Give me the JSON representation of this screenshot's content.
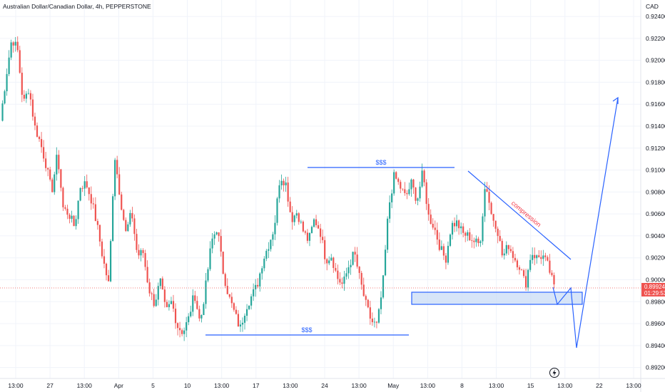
{
  "chart_data": {
    "type": "candlestick",
    "title": "Australian Dollar/Canadian Dollar, 4h, PEPPERSTONE",
    "currency": "CAD",
    "ylim": [
      0.891,
      0.9255
    ],
    "y_ticks": [
      "0.92400",
      "0.92200",
      "0.92000",
      "0.91800",
      "0.91600",
      "0.91400",
      "0.91200",
      "0.91000",
      "0.90800",
      "0.90600",
      "0.90400",
      "0.90200",
      "0.90000",
      "0.89800",
      "0.89600",
      "0.89400",
      "0.89200"
    ],
    "x_ticks": [
      "13:00",
      "27",
      "13:00",
      "Apr",
      "5",
      "10",
      "13:00",
      "17",
      "13:00",
      "24",
      "13:00",
      "May",
      "13:00",
      "8",
      "13:00",
      "15",
      "13:00",
      "22",
      "13:00"
    ],
    "last_price": "0.89924",
    "countdown": "01:29:53",
    "colors": {
      "up": "#26a69a",
      "down": "#ef5350",
      "drawing": "#2962ff",
      "note": "#f23645",
      "zone_fill": "#c9dcf5"
    },
    "annotations": {
      "liquidity_top": "$$$",
      "liquidity_bottom": "$$$",
      "trend_label": "compression"
    },
    "price_path": [
      0.9145,
      0.9185,
      0.922,
      0.921,
      0.916,
      0.9175,
      0.914,
      0.9125,
      0.9105,
      0.908,
      0.9115,
      0.9065,
      0.906,
      0.9048,
      0.9085,
      0.9088,
      0.9072,
      0.9048,
      0.9018,
      0.8995,
      0.9115,
      0.9075,
      0.9042,
      0.9062,
      0.9022,
      0.9025,
      0.8992,
      0.8978,
      0.8999,
      0.897,
      0.898,
      0.8958,
      0.8952,
      0.8965,
      0.8988,
      0.896,
      0.8995,
      0.9035,
      0.9048,
      0.9008,
      0.8985,
      0.897,
      0.8955,
      0.8975,
      0.8985,
      0.8995,
      0.9018,
      0.9032,
      0.9048,
      0.9095,
      0.9088,
      0.9055,
      0.9062,
      0.9045,
      0.9035,
      0.9055,
      0.9045,
      0.9018,
      0.9022,
      0.9002,
      0.8995,
      0.9012,
      0.9025,
      0.9,
      0.8978,
      0.8962,
      0.8958,
      0.8995,
      0.9065,
      0.9095,
      0.9085,
      0.9075,
      0.9088,
      0.9072,
      0.9098,
      0.9058,
      0.9048,
      0.903,
      0.9018,
      0.905,
      0.9052,
      0.9042,
      0.904,
      0.9035,
      0.9032,
      0.909,
      0.906,
      0.9048,
      0.902,
      0.9032,
      0.902,
      0.9012,
      0.8995,
      0.9025,
      0.902,
      0.9022,
      0.9012,
      0.8993
    ]
  }
}
